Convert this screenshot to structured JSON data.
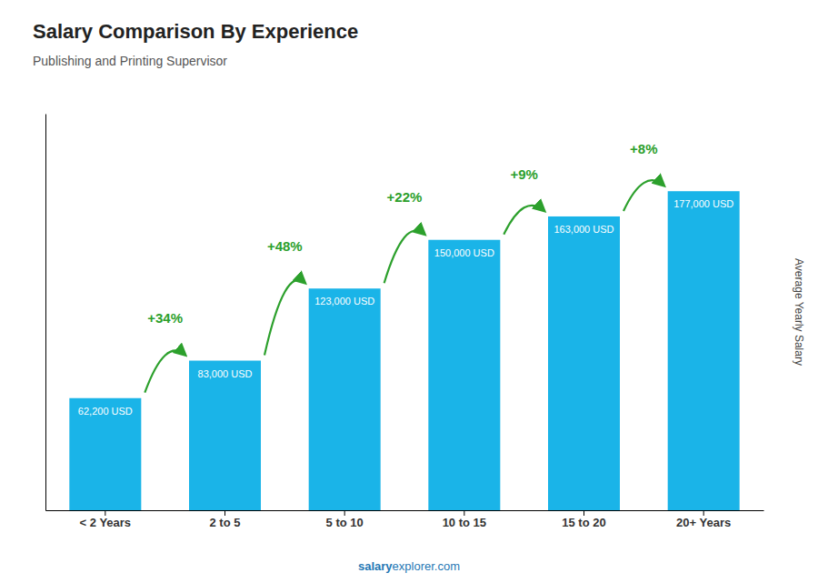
{
  "chart_data": {
    "type": "bar",
    "title": "Salary Comparison By Experience",
    "subtitle": "Publishing and Printing Supervisor",
    "ylabel": "Average Yearly Salary",
    "categories": [
      "< 2 Years",
      "2 to 5",
      "5 to 10",
      "10 to 15",
      "15 to 20",
      "20+ Years"
    ],
    "values": [
      62200,
      83000,
      123000,
      150000,
      163000,
      177000
    ],
    "value_labels": [
      "62,200 USD",
      "83,000 USD",
      "123,000 USD",
      "150,000 USD",
      "163,000 USD",
      "177,000 USD"
    ],
    "data_labels": true,
    "annotations": [
      "+34%",
      "+48%",
      "+22%",
      "+9%",
      "+8%"
    ],
    "watermark": [
      "salary",
      "explorer.com"
    ],
    "color": "#1ab4e8",
    "ylim": [
      0,
      220000
    ],
    "tick_labels": "x",
    "grid": false
  }
}
